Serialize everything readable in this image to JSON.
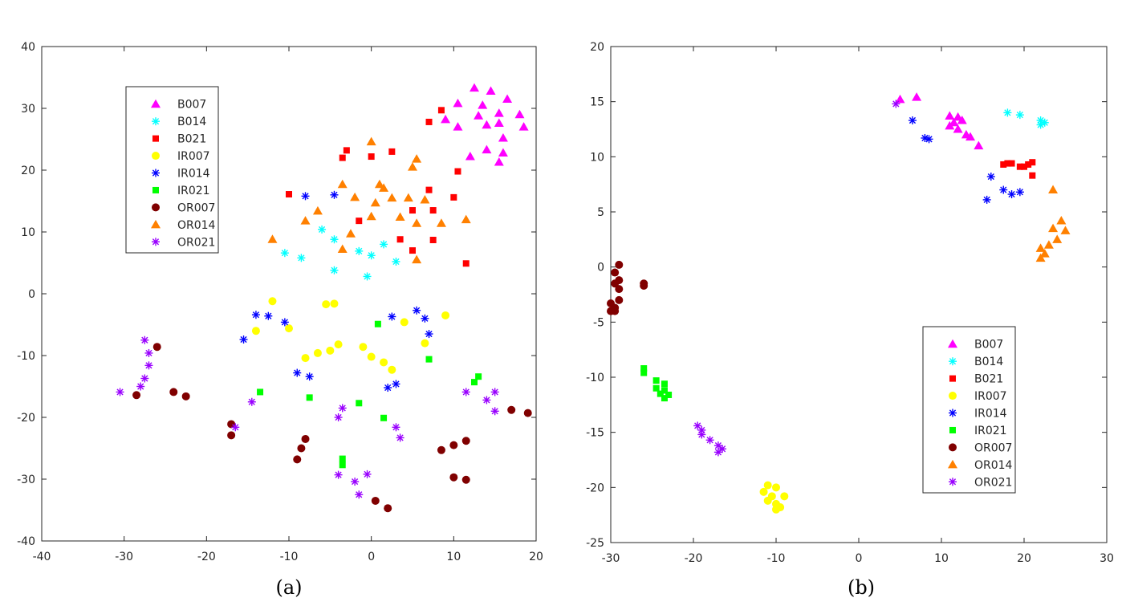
{
  "chart_data": [
    {
      "type": "scatter",
      "caption": "(a)",
      "xlim": [
        -40,
        20
      ],
      "ylim": [
        -40,
        40
      ],
      "xticks": [
        -40,
        -30,
        -20,
        -10,
        0,
        10,
        20
      ],
      "yticks": [
        -40,
        -30,
        -20,
        -10,
        0,
        10,
        20,
        30,
        40
      ],
      "legend_position": "top-left",
      "series": [
        {
          "name": "B007",
          "marker": "triangle",
          "color": "#ff00ff",
          "points": [
            [
              12.5,
              33.3
            ],
            [
              14.5,
              32.8
            ],
            [
              10.5,
              30.8
            ],
            [
              16.5,
              31.5
            ],
            [
              13.5,
              30.5
            ],
            [
              15.5,
              29.2
            ],
            [
              13.0,
              28.8
            ],
            [
              9.0,
              28.2
            ],
            [
              18.0,
              29.0
            ],
            [
              14.0,
              27.3
            ],
            [
              15.5,
              27.6
            ],
            [
              10.5,
              27.0
            ],
            [
              18.5,
              27.0
            ],
            [
              16.0,
              25.2
            ],
            [
              14.0,
              23.3
            ],
            [
              16.0,
              22.8
            ],
            [
              12.0,
              22.2
            ],
            [
              15.5,
              21.3
            ]
          ]
        },
        {
          "name": "B014",
          "marker": "asterisk",
          "color": "#00ffff",
          "points": [
            [
              -6,
              10.4
            ],
            [
              -4.5,
              8.8
            ],
            [
              -10.5,
              6.6
            ],
            [
              -8.5,
              5.8
            ],
            [
              -1.5,
              6.9
            ],
            [
              0,
              6.2
            ],
            [
              1.5,
              8.0
            ],
            [
              3,
              5.2
            ],
            [
              -4.5,
              3.8
            ],
            [
              -0.5,
              2.8
            ]
          ]
        },
        {
          "name": "B021",
          "marker": "square",
          "color": "#ff0000",
          "points": [
            [
              8.5,
              29.7
            ],
            [
              7.0,
              27.8
            ],
            [
              -3.0,
              23.2
            ],
            [
              2.5,
              23.0
            ],
            [
              0,
              22.2
            ],
            [
              -3.5,
              22.0
            ],
            [
              10.5,
              19.8
            ],
            [
              -10,
              16.1
            ],
            [
              7.0,
              16.8
            ],
            [
              10.0,
              15.6
            ],
            [
              5.0,
              13.5
            ],
            [
              7.5,
              13.5
            ],
            [
              -1.5,
              11.8
            ],
            [
              3.5,
              8.8
            ],
            [
              7.5,
              8.7
            ],
            [
              5.0,
              7.0
            ],
            [
              11.5,
              4.9
            ]
          ]
        },
        {
          "name": "IR007",
          "marker": "circle",
          "color": "#ffff00",
          "points": [
            [
              -12,
              -1.2
            ],
            [
              -5.5,
              -1.7
            ],
            [
              -4.5,
              -1.6
            ],
            [
              9,
              -3.5
            ],
            [
              4,
              -4.6
            ],
            [
              -14,
              -6
            ],
            [
              -10,
              -5.6
            ],
            [
              -1,
              -8.6
            ],
            [
              -4,
              -8.2
            ],
            [
              6.5,
              -8
            ],
            [
              -6.5,
              -9.6
            ],
            [
              -5,
              -9.2
            ],
            [
              -8,
              -10.4
            ],
            [
              0,
              -10.2
            ],
            [
              1.5,
              -11.1
            ],
            [
              2.5,
              -12.3
            ]
          ]
        },
        {
          "name": "IR014",
          "marker": "asterisk",
          "color": "#0000ff",
          "points": [
            [
              -8,
              15.8
            ],
            [
              -4.5,
              16
            ],
            [
              -14,
              -3.4
            ],
            [
              -12.5,
              -3.6
            ],
            [
              -10.5,
              -4.6
            ],
            [
              2.5,
              -3.7
            ],
            [
              5.5,
              -2.7
            ],
            [
              6.5,
              -4
            ],
            [
              -15.5,
              -7.4
            ],
            [
              7,
              -6.5
            ],
            [
              -9,
              -12.8
            ],
            [
              -7.5,
              -13.4
            ],
            [
              3,
              -14.6
            ],
            [
              2,
              -15.2
            ]
          ]
        },
        {
          "name": "IR021",
          "marker": "square",
          "color": "#00ff00",
          "points": [
            [
              0.8,
              -4.9
            ],
            [
              7,
              -10.6
            ],
            [
              13,
              -13.4
            ],
            [
              12.5,
              -14.3
            ],
            [
              -13.5,
              -15.9
            ],
            [
              -7.5,
              -16.8
            ],
            [
              -1.5,
              -17.7
            ],
            [
              1.5,
              -20.1
            ],
            [
              -3.5,
              -26.7
            ],
            [
              -3.5,
              -27.7
            ]
          ]
        },
        {
          "name": "OR007",
          "marker": "circle",
          "color": "#800000",
          "points": [
            [
              -26,
              -8.6
            ],
            [
              -28.5,
              -16.4
            ],
            [
              -24,
              -15.9
            ],
            [
              -22.5,
              -16.6
            ],
            [
              -17,
              -21.1
            ],
            [
              -17,
              -22.9
            ],
            [
              -8,
              -23.5
            ],
            [
              -8.5,
              -25
            ],
            [
              -9,
              -26.8
            ],
            [
              11.5,
              -23.8
            ],
            [
              10,
              -24.5
            ],
            [
              8.5,
              -25.3
            ],
            [
              17,
              -18.8
            ],
            [
              19,
              -19.3
            ],
            [
              10,
              -29.7
            ],
            [
              11.5,
              -30.1
            ],
            [
              0.5,
              -33.5
            ],
            [
              2,
              -34.7
            ]
          ]
        },
        {
          "name": "OR014",
          "marker": "triangle",
          "color": "#ff8000",
          "points": [
            [
              0,
              24.6
            ],
            [
              5.5,
              21.8
            ],
            [
              5,
              20.5
            ],
            [
              1,
              17.7
            ],
            [
              -3.5,
              17.7
            ],
            [
              1.5,
              17.1
            ],
            [
              -2,
              15.6
            ],
            [
              2.5,
              15.5
            ],
            [
              4.5,
              15.5
            ],
            [
              6.5,
              15.2
            ],
            [
              0.5,
              14.7
            ],
            [
              -6.5,
              13.4
            ],
            [
              0,
              12.5
            ],
            [
              3.5,
              12.4
            ],
            [
              -8,
              11.8
            ],
            [
              5.5,
              11.4
            ],
            [
              8.5,
              11.4
            ],
            [
              11.5,
              12
            ],
            [
              -2.5,
              9.7
            ],
            [
              -12,
              8.8
            ],
            [
              -3.5,
              7.2
            ],
            [
              5.5,
              5.5
            ]
          ]
        },
        {
          "name": "OR021",
          "marker": "asterisk",
          "color": "#9900ff",
          "points": [
            [
              -27.5,
              -7.5
            ],
            [
              -27,
              -9.6
            ],
            [
              -27,
              -11.6
            ],
            [
              -27.5,
              -13.7
            ],
            [
              -28,
              -15
            ],
            [
              -30.5,
              -15.9
            ],
            [
              -14.5,
              -17.5
            ],
            [
              -16.5,
              -21.6
            ],
            [
              -3.5,
              -18.5
            ],
            [
              -4,
              -20
            ],
            [
              3,
              -21.6
            ],
            [
              3.5,
              -23.3
            ],
            [
              11.5,
              -15.9
            ],
            [
              15,
              -15.9
            ],
            [
              14,
              -17.2
            ],
            [
              15,
              -19
            ],
            [
              -4,
              -29.3
            ],
            [
              -2,
              -30.4
            ],
            [
              -0.5,
              -29.2
            ],
            [
              -1.5,
              -32.5
            ]
          ]
        }
      ]
    },
    {
      "type": "scatter",
      "caption": "(b)",
      "xlim": [
        -30,
        30
      ],
      "ylim": [
        -25,
        20
      ],
      "xticks": [
        -30,
        -20,
        -10,
        0,
        10,
        20,
        30
      ],
      "yticks": [
        -25,
        -20,
        -15,
        -10,
        -5,
        0,
        5,
        10,
        15,
        20
      ],
      "legend_position": "bottom-right",
      "series": [
        {
          "name": "B007",
          "marker": "triangle",
          "color": "#ff00ff",
          "points": [
            [
              5,
              15.2
            ],
            [
              7,
              15.4
            ],
            [
              11,
              13.7
            ],
            [
              12,
              13.6
            ],
            [
              11.5,
              13.1
            ],
            [
              12.5,
              13.3
            ],
            [
              11,
              12.8
            ],
            [
              12,
              12.5
            ],
            [
              13,
              12
            ],
            [
              13.5,
              11.8
            ],
            [
              14.5,
              11
            ]
          ]
        },
        {
          "name": "B014",
          "marker": "asterisk",
          "color": "#00ffff",
          "points": [
            [
              18,
              14
            ],
            [
              19.5,
              13.8
            ],
            [
              22,
              13.3
            ],
            [
              22.5,
              13.1
            ],
            [
              22,
              12.9
            ]
          ]
        },
        {
          "name": "B021",
          "marker": "square",
          "color": "#ff0000",
          "points": [
            [
              17.5,
              9.3
            ],
            [
              18,
              9.4
            ],
            [
              18.5,
              9.4
            ],
            [
              19.5,
              9.1
            ],
            [
              20,
              9.1
            ],
            [
              20.5,
              9.3
            ],
            [
              21,
              9.5
            ],
            [
              21,
              8.3
            ]
          ]
        },
        {
          "name": "IR007",
          "marker": "circle",
          "color": "#ffff00",
          "points": [
            [
              -11,
              -19.8
            ],
            [
              -10,
              -20
            ],
            [
              -11.5,
              -20.4
            ],
            [
              -10.5,
              -20.8
            ],
            [
              -9,
              -20.8
            ],
            [
              -11,
              -21.2
            ],
            [
              -10,
              -21.5
            ],
            [
              -9.5,
              -21.8
            ],
            [
              -10,
              -22
            ]
          ]
        },
        {
          "name": "IR014",
          "marker": "asterisk",
          "color": "#0000ff",
          "points": [
            [
              6.5,
              13.3
            ],
            [
              8,
              11.7
            ],
            [
              8.5,
              11.6
            ],
            [
              16,
              8.2
            ],
            [
              17.5,
              7
            ],
            [
              18.5,
              6.6
            ],
            [
              19.5,
              6.8
            ],
            [
              15.5,
              6.1
            ]
          ]
        },
        {
          "name": "IR021",
          "marker": "square",
          "color": "#00ff00",
          "points": [
            [
              -26,
              -9.2
            ],
            [
              -26,
              -9.6
            ],
            [
              -24.5,
              -10.3
            ],
            [
              -23.5,
              -10.6
            ],
            [
              -24.5,
              -11
            ],
            [
              -23.5,
              -11.2
            ],
            [
              -24,
              -11.5
            ],
            [
              -23,
              -11.6
            ],
            [
              -23.5,
              -11.9
            ]
          ]
        },
        {
          "name": "OR007",
          "marker": "circle",
          "color": "#800000",
          "points": [
            [
              -29,
              0.2
            ],
            [
              -29.5,
              -0.5
            ],
            [
              -29,
              -1.2
            ],
            [
              -29.5,
              -1.5
            ],
            [
              -29,
              -2
            ],
            [
              -26,
              -1.5
            ],
            [
              -26,
              -1.7
            ],
            [
              -29,
              -3
            ],
            [
              -30,
              -3.3
            ],
            [
              -29.5,
              -3.7
            ],
            [
              -30,
              -4
            ],
            [
              -29.5,
              -4
            ]
          ]
        },
        {
          "name": "OR014",
          "marker": "triangle",
          "color": "#ff8000",
          "points": [
            [
              23.5,
              7
            ],
            [
              24.5,
              4.2
            ],
            [
              25,
              3.3
            ],
            [
              23.5,
              3.5
            ],
            [
              24,
              2.5
            ],
            [
              23,
              2
            ],
            [
              22,
              1.7
            ],
            [
              22.5,
              1.2
            ],
            [
              22,
              0.8
            ]
          ]
        },
        {
          "name": "OR021",
          "marker": "asterisk",
          "color": "#9900ff",
          "points": [
            [
              4.5,
              14.8
            ],
            [
              -19.5,
              -14.4
            ],
            [
              -19,
              -14.8
            ],
            [
              -19,
              -15.2
            ],
            [
              -18,
              -15.7
            ],
            [
              -17,
              -16.2
            ],
            [
              -16.5,
              -16.5
            ],
            [
              -17,
              -16.8
            ]
          ]
        }
      ]
    }
  ]
}
